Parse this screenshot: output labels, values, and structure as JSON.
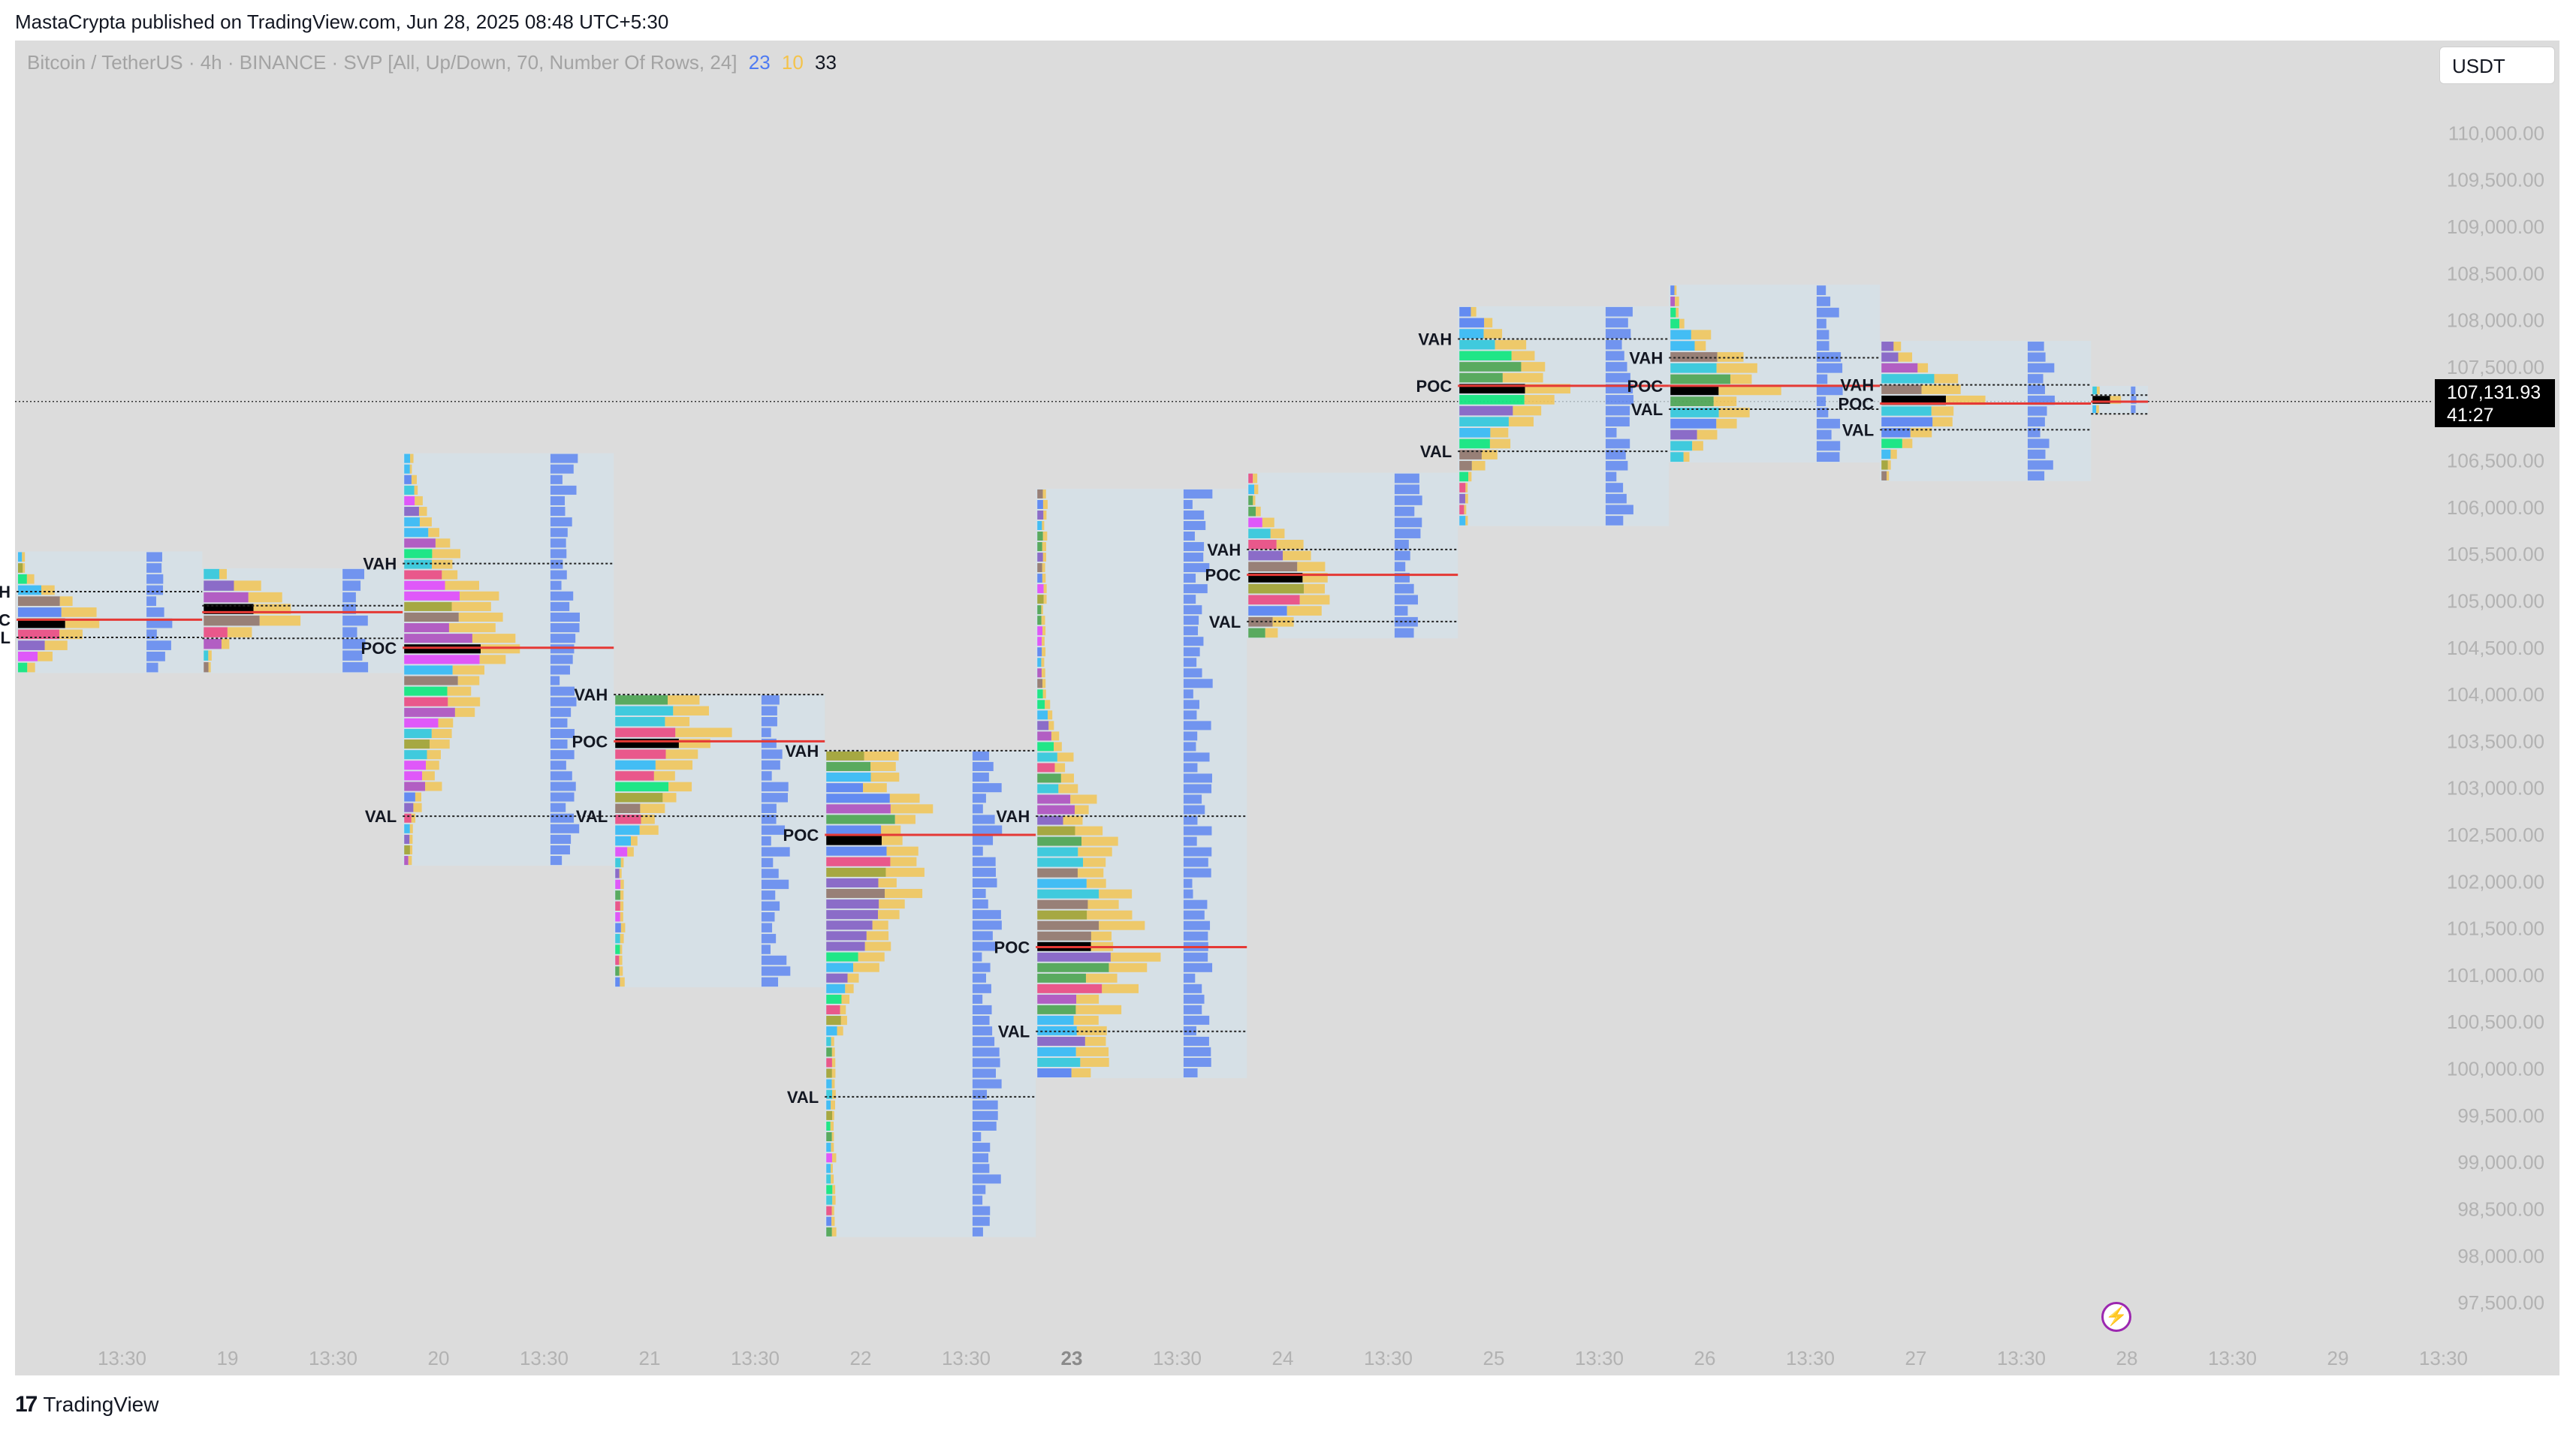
{
  "header": {
    "published_by": "MastaCrypta published on TradingView.com, Jun 28, 2025 08:48 UTC+5:30"
  },
  "legend": {
    "title": "Bitcoin / TetherUS · 4h · BINANCE · SVP [All, Up/Down, 70, Number Of Rows, 24]",
    "v1": "23",
    "v2": "10",
    "v3": "33",
    "v1_color": "#4f7bf2",
    "v2_color": "#f4c34b",
    "v3_color": "#131722"
  },
  "currency": "USDT",
  "price_tag": {
    "price": "107,131.93",
    "countdown": "41:27"
  },
  "footer": {
    "brand": "TradingView"
  },
  "chart_data": {
    "type": "volume-profile",
    "y_axis": {
      "range": [
        97300,
        110300
      ],
      "tick_labels": [
        "110,000.00",
        "109,500.00",
        "109,000.00",
        "108,500.00",
        "108,000.00",
        "107,500.00",
        "107,000.00",
        "106,500.00",
        "106,000.00",
        "105,500.00",
        "105,000.00",
        "104,500.00",
        "104,000.00",
        "103,500.00",
        "103,000.00",
        "102,500.00",
        "102,000.00",
        "101,500.00",
        "101,000.00",
        "100,500.00",
        "100,000.00",
        "99,500.00",
        "99,000.00",
        "98,500.00",
        "98,000.00",
        "97,500.00"
      ],
      "tick_values": [
        110000,
        109500,
        109000,
        108500,
        108000,
        107500,
        107000,
        106500,
        106000,
        105500,
        105000,
        104500,
        104000,
        103500,
        103000,
        102500,
        102000,
        101500,
        101000,
        100500,
        100000,
        99500,
        99000,
        98500,
        98000,
        97500
      ]
    },
    "x_axis": {
      "tick_labels": [
        "13:30",
        "19",
        "13:30",
        "20",
        "13:30",
        "21",
        "13:30",
        "22",
        "13:30",
        "23",
        "13:30",
        "24",
        "13:30",
        "25",
        "13:30",
        "26",
        "13:30",
        "27",
        "13:30",
        "28",
        "13:30",
        "29",
        "13:30"
      ],
      "tick_values": [
        0.5,
        1,
        1.5,
        2,
        2.5,
        3,
        3.5,
        4,
        4.5,
        5,
        5.5,
        6,
        6.5,
        7,
        7.5,
        8,
        8.5,
        9,
        9.5,
        10,
        10.5,
        11,
        11.5
      ],
      "bold_label": "23"
    },
    "current_price": 107131.93,
    "colors": {
      "up": "#f4c34b",
      "down": "#4f7bf2",
      "poc": "#000000",
      "poc_line": "#e53935",
      "box": "#d4e2ea",
      "palette": [
        "#26c6da",
        "#29b6f6",
        "#4f7bf2",
        "#7e57c2",
        "#ab47bc",
        "#e040fb",
        "#ec407a",
        "#00e676",
        "#43a047",
        "#9e9d24",
        "#8d6e63"
      ]
    },
    "profiles": [
      {
        "start": 0.0,
        "end": 0.88,
        "low": 104230,
        "high": 105530,
        "vah": 105100,
        "poc": 104800,
        "val": 104610,
        "labels": [
          "VAH",
          "POC",
          "VAL"
        ]
      },
      {
        "start": 0.88,
        "end": 1.83,
        "low": 104230,
        "high": 105350,
        "vah": 104950,
        "poc": 104880,
        "val": 104600,
        "labels": [
          "",
          "",
          ""
        ]
      },
      {
        "start": 1.83,
        "end": 2.83,
        "low": 102170,
        "high": 106580,
        "vah": 105400,
        "poc": 104500,
        "val": 102700,
        "labels": [
          "VAH",
          "POC",
          "VAL"
        ]
      },
      {
        "start": 2.83,
        "end": 3.83,
        "low": 100870,
        "high": 104000,
        "vah": 104000,
        "poc": 103500,
        "val": 102700,
        "labels": [
          "VAH",
          "POC",
          "VAL"
        ]
      },
      {
        "start": 3.83,
        "end": 4.83,
        "low": 98200,
        "high": 103400,
        "vah": 103400,
        "poc": 102500,
        "val": 99700,
        "labels": [
          "VAH",
          "POC",
          "VAL"
        ]
      },
      {
        "start": 4.83,
        "end": 5.83,
        "low": 99900,
        "high": 106200,
        "vah": 102700,
        "poc": 101300,
        "val": 100400,
        "labels": [
          "VAH",
          "POC",
          "VAL"
        ]
      },
      {
        "start": 5.83,
        "end": 6.83,
        "low": 104600,
        "high": 106370,
        "vah": 105550,
        "poc": 105280,
        "val": 104780,
        "labels": [
          "VAH",
          "POC",
          "VAL"
        ]
      },
      {
        "start": 6.83,
        "end": 7.83,
        "low": 105800,
        "high": 108150,
        "vah": 107800,
        "poc": 107300,
        "val": 106600,
        "labels": [
          "VAH",
          "POC",
          "VAL"
        ]
      },
      {
        "start": 7.83,
        "end": 8.83,
        "low": 106480,
        "high": 108380,
        "vah": 107600,
        "poc": 107300,
        "val": 107050,
        "labels": [
          "VAH",
          "POC",
          "VAL"
        ]
      },
      {
        "start": 8.83,
        "end": 9.83,
        "low": 106280,
        "high": 107780,
        "vah": 107310,
        "poc": 107110,
        "val": 106830,
        "labels": [
          "VAH",
          "POC",
          "VAL"
        ]
      },
      {
        "start": 9.83,
        "end": 10.1,
        "low": 107000,
        "high": 107300,
        "vah": 107200,
        "poc": 107130,
        "val": 107000,
        "labels": [
          "",
          "",
          ""
        ]
      }
    ]
  }
}
